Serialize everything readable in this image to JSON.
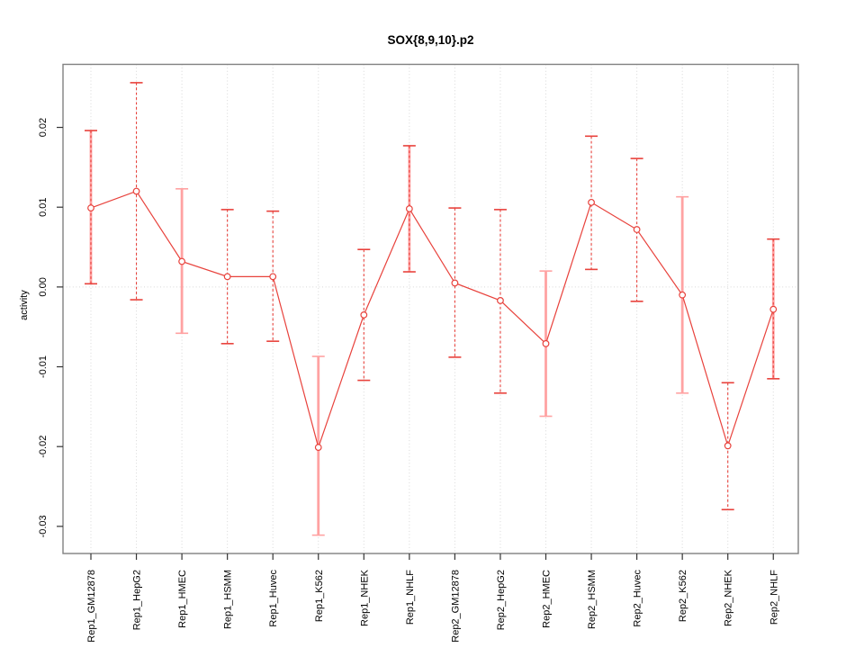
{
  "figure": {
    "title": "SOX{8,9,10}.p2",
    "y_axis_label": "activity"
  },
  "chart_data": {
    "type": "line",
    "subtype": "points-with-error-bars",
    "title": "SOX{8,9,10}.p2",
    "xlabel": "",
    "ylabel": "activity",
    "ylim": [
      -0.0334,
      0.0279
    ],
    "yticks": [
      0.02,
      0.01,
      0.0,
      -0.01,
      -0.02,
      -0.03
    ],
    "ytick_labels": [
      "0.02",
      "0.01",
      "0.00",
      "-0.01",
      "-0.02",
      "-0.03"
    ],
    "grid": "vertical-dotted-gridlines-and-dotted-zero-line",
    "legend": "none",
    "x_tick_label_rotation": 90,
    "categories": [
      "Rep1_GM12878",
      "Rep1_HepG2",
      "Rep1_HMEC",
      "Rep1_HSMM",
      "Rep1_Huvec",
      "Rep1_K562",
      "Rep1_NHEK",
      "Rep1_NHLF",
      "Rep2_GM12878",
      "Rep2_HepG2",
      "Rep2_HMEC",
      "Rep2_HSMM",
      "Rep2_Huvec",
      "Rep2_K562",
      "Rep2_NHEK",
      "Rep2_NHLF"
    ],
    "series": [
      {
        "name": "activity",
        "values": [
          0.0099,
          0.012,
          0.0032,
          0.0013,
          0.0013,
          -0.0201,
          -0.0035,
          0.0098,
          0.0005,
          -0.0017,
          -0.0071,
          0.0106,
          0.0072,
          -0.001,
          -0.0199,
          -0.0028
        ],
        "lower": [
          0.0004,
          -0.0016,
          -0.0058,
          -0.0071,
          -0.0068,
          -0.0311,
          -0.0117,
          0.0019,
          -0.0088,
          -0.0133,
          -0.0162,
          0.0022,
          -0.0018,
          -0.0133,
          -0.0279,
          -0.0115
        ],
        "upper": [
          0.0196,
          0.0256,
          0.0123,
          0.0097,
          0.0095,
          -0.0087,
          0.0047,
          0.0177,
          0.0099,
          0.0097,
          0.002,
          0.0189,
          0.0161,
          0.0113,
          -0.012,
          0.006
        ],
        "bar_styles": [
          "both",
          "dashed",
          "pink",
          "dashed",
          "dashed",
          "pink",
          "dashed",
          "both",
          "dashed",
          "dashed",
          "pink",
          "dashed",
          "dashed",
          "pink",
          "dashed",
          "both"
        ]
      }
    ],
    "colors": {
      "line": "#e8423c",
      "marker": "#e8423c",
      "error_red": "#e8423c",
      "error_pink": "#ffa2a2",
      "grid": "#d8d8d8",
      "axis_box": "#808080",
      "tick": "#333333",
      "text": "#000000",
      "background": "#ffffff"
    }
  }
}
